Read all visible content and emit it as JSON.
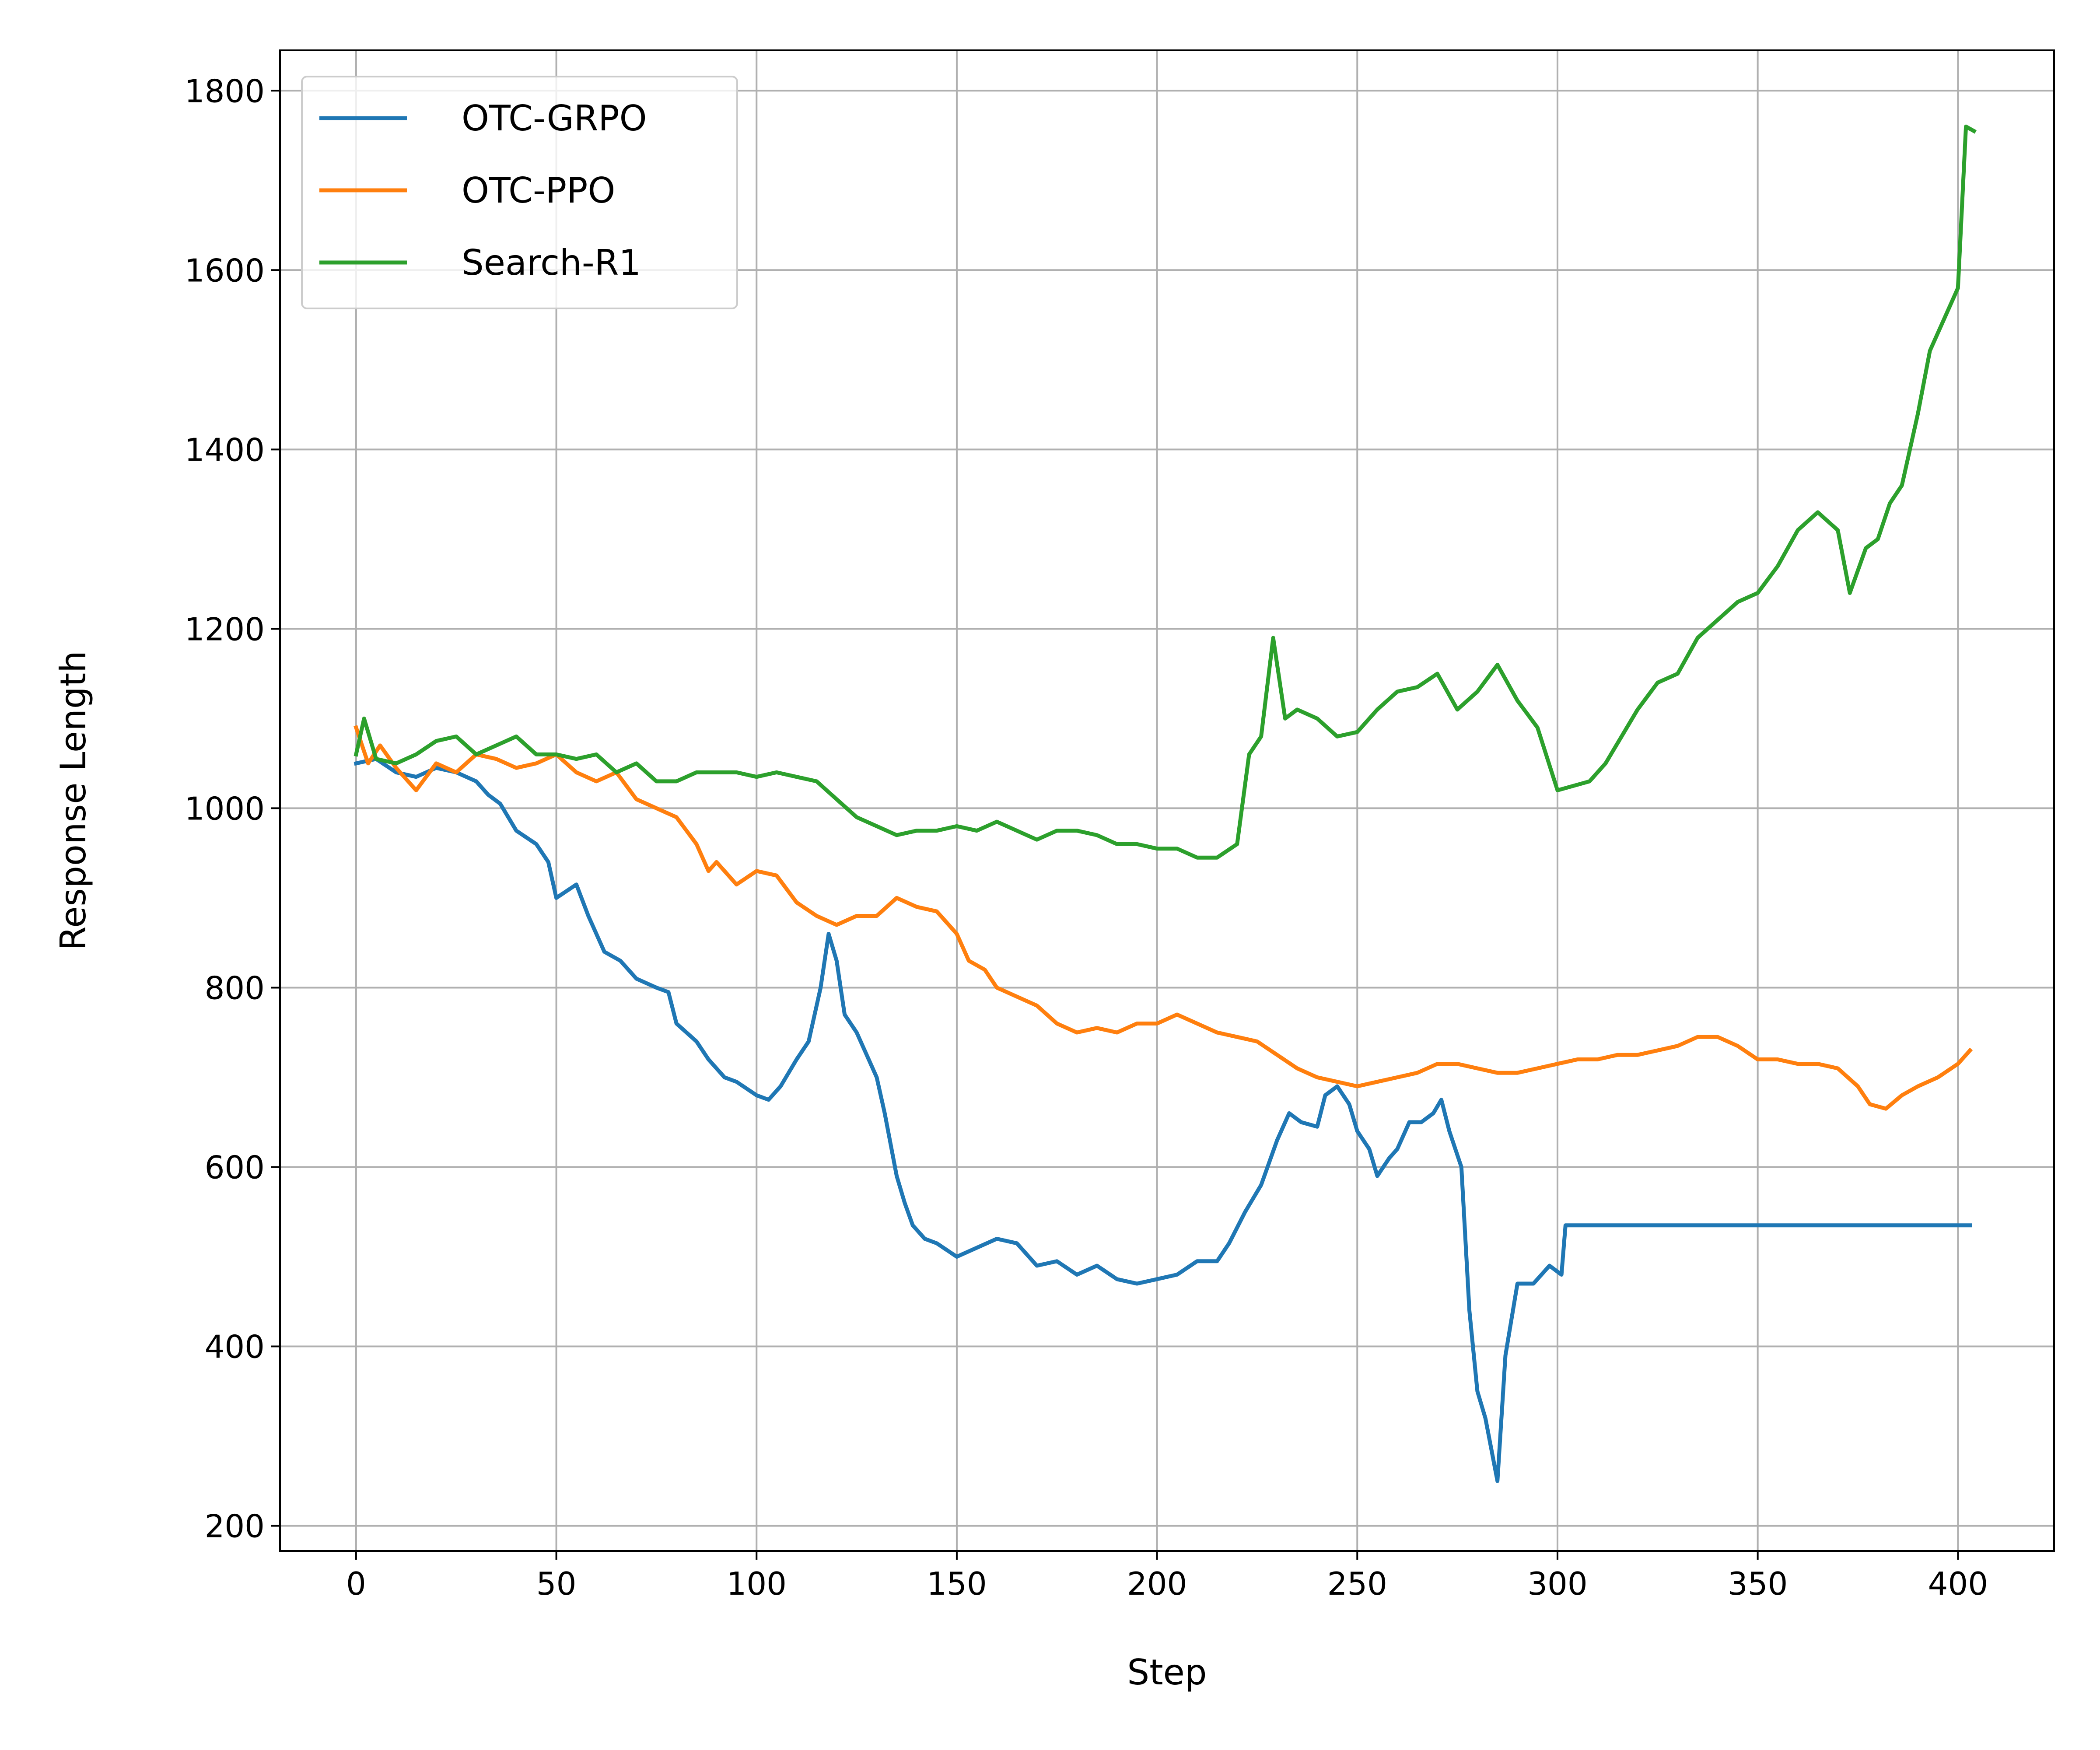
{
  "chart_data": {
    "type": "line",
    "xlabel": "Step",
    "ylabel": "Response Length",
    "xlim": [
      -19,
      424
    ],
    "ylim": [
      172,
      1845
    ],
    "xticks": [
      0,
      50,
      100,
      150,
      200,
      250,
      300,
      350,
      400
    ],
    "yticks": [
      200,
      400,
      600,
      800,
      1000,
      1200,
      1400,
      1600,
      1800
    ],
    "grid": true,
    "legend_position": "top-left",
    "series": [
      {
        "name": "OTC-GRPO",
        "color": "#1f77b4",
        "points": [
          [
            0,
            1050
          ],
          [
            5,
            1055
          ],
          [
            10,
            1040
          ],
          [
            15,
            1035
          ],
          [
            20,
            1045
          ],
          [
            25,
            1040
          ],
          [
            30,
            1030
          ],
          [
            33,
            1015
          ],
          [
            36,
            1005
          ],
          [
            40,
            975
          ],
          [
            45,
            960
          ],
          [
            48,
            940
          ],
          [
            50,
            900
          ],
          [
            55,
            915
          ],
          [
            58,
            880
          ],
          [
            62,
            840
          ],
          [
            66,
            830
          ],
          [
            70,
            810
          ],
          [
            75,
            800
          ],
          [
            78,
            795
          ],
          [
            80,
            760
          ],
          [
            85,
            740
          ],
          [
            88,
            720
          ],
          [
            92,
            700
          ],
          [
            95,
            695
          ],
          [
            100,
            680
          ],
          [
            103,
            675
          ],
          [
            106,
            690
          ],
          [
            110,
            720
          ],
          [
            113,
            740
          ],
          [
            116,
            800
          ],
          [
            118,
            860
          ],
          [
            120,
            830
          ],
          [
            122,
            770
          ],
          [
            125,
            750
          ],
          [
            128,
            720
          ],
          [
            130,
            700
          ],
          [
            132,
            660
          ],
          [
            135,
            590
          ],
          [
            137,
            560
          ],
          [
            139,
            535
          ],
          [
            142,
            520
          ],
          [
            145,
            515
          ],
          [
            150,
            500
          ],
          [
            155,
            510
          ],
          [
            160,
            520
          ],
          [
            165,
            515
          ],
          [
            170,
            490
          ],
          [
            175,
            495
          ],
          [
            180,
            480
          ],
          [
            185,
            490
          ],
          [
            190,
            475
          ],
          [
            195,
            470
          ],
          [
            200,
            475
          ],
          [
            205,
            480
          ],
          [
            210,
            495
          ],
          [
            215,
            495
          ],
          [
            218,
            515
          ],
          [
            222,
            550
          ],
          [
            226,
            580
          ],
          [
            230,
            630
          ],
          [
            233,
            660
          ],
          [
            236,
            650
          ],
          [
            240,
            645
          ],
          [
            242,
            680
          ],
          [
            245,
            690
          ],
          [
            248,
            670
          ],
          [
            250,
            640
          ],
          [
            253,
            620
          ],
          [
            255,
            590
          ],
          [
            258,
            610
          ],
          [
            260,
            620
          ],
          [
            263,
            650
          ],
          [
            266,
            650
          ],
          [
            269,
            660
          ],
          [
            271,
            675
          ],
          [
            273,
            640
          ],
          [
            276,
            600
          ],
          [
            278,
            440
          ],
          [
            280,
            350
          ],
          [
            282,
            320
          ],
          [
            285,
            250
          ],
          [
            287,
            390
          ],
          [
            290,
            470
          ],
          [
            294,
            470
          ],
          [
            298,
            490
          ],
          [
            301,
            480
          ],
          [
            302,
            535
          ],
          [
            310,
            535
          ],
          [
            320,
            535
          ],
          [
            330,
            535
          ],
          [
            340,
            535
          ],
          [
            350,
            535
          ],
          [
            360,
            535
          ],
          [
            370,
            535
          ],
          [
            380,
            535
          ],
          [
            390,
            535
          ],
          [
            400,
            535
          ],
          [
            403,
            535
          ]
        ]
      },
      {
        "name": "OTC-PPO",
        "color": "#ff7f0e",
        "points": [
          [
            0,
            1090
          ],
          [
            3,
            1050
          ],
          [
            6,
            1070
          ],
          [
            10,
            1045
          ],
          [
            15,
            1020
          ],
          [
            20,
            1050
          ],
          [
            25,
            1040
          ],
          [
            30,
            1060
          ],
          [
            35,
            1055
          ],
          [
            40,
            1045
          ],
          [
            45,
            1050
          ],
          [
            50,
            1060
          ],
          [
            55,
            1040
          ],
          [
            60,
            1030
          ],
          [
            65,
            1040
          ],
          [
            70,
            1010
          ],
          [
            75,
            1000
          ],
          [
            80,
            990
          ],
          [
            85,
            960
          ],
          [
            88,
            930
          ],
          [
            90,
            940
          ],
          [
            95,
            915
          ],
          [
            100,
            930
          ],
          [
            105,
            925
          ],
          [
            110,
            895
          ],
          [
            115,
            880
          ],
          [
            120,
            870
          ],
          [
            125,
            880
          ],
          [
            130,
            880
          ],
          [
            135,
            900
          ],
          [
            140,
            890
          ],
          [
            145,
            885
          ],
          [
            150,
            860
          ],
          [
            153,
            830
          ],
          [
            157,
            820
          ],
          [
            160,
            800
          ],
          [
            165,
            790
          ],
          [
            170,
            780
          ],
          [
            175,
            760
          ],
          [
            180,
            750
          ],
          [
            185,
            755
          ],
          [
            190,
            750
          ],
          [
            195,
            760
          ],
          [
            200,
            760
          ],
          [
            205,
            770
          ],
          [
            210,
            760
          ],
          [
            215,
            750
          ],
          [
            220,
            745
          ],
          [
            225,
            740
          ],
          [
            230,
            725
          ],
          [
            235,
            710
          ],
          [
            240,
            700
          ],
          [
            245,
            695
          ],
          [
            250,
            690
          ],
          [
            255,
            695
          ],
          [
            260,
            700
          ],
          [
            265,
            705
          ],
          [
            270,
            715
          ],
          [
            275,
            715
          ],
          [
            280,
            710
          ],
          [
            285,
            705
          ],
          [
            290,
            705
          ],
          [
            295,
            710
          ],
          [
            300,
            715
          ],
          [
            305,
            720
          ],
          [
            310,
            720
          ],
          [
            315,
            725
          ],
          [
            320,
            725
          ],
          [
            325,
            730
          ],
          [
            330,
            735
          ],
          [
            335,
            745
          ],
          [
            340,
            745
          ],
          [
            345,
            735
          ],
          [
            350,
            720
          ],
          [
            355,
            720
          ],
          [
            360,
            715
          ],
          [
            365,
            715
          ],
          [
            370,
            710
          ],
          [
            375,
            690
          ],
          [
            378,
            670
          ],
          [
            382,
            665
          ],
          [
            386,
            680
          ],
          [
            390,
            690
          ],
          [
            395,
            700
          ],
          [
            400,
            715
          ],
          [
            403,
            730
          ]
        ]
      },
      {
        "name": "Search-R1",
        "color": "#2ca02c",
        "points": [
          [
            0,
            1060
          ],
          [
            2,
            1100
          ],
          [
            5,
            1055
          ],
          [
            10,
            1050
          ],
          [
            15,
            1060
          ],
          [
            20,
            1075
          ],
          [
            25,
            1080
          ],
          [
            30,
            1060
          ],
          [
            35,
            1070
          ],
          [
            40,
            1080
          ],
          [
            45,
            1060
          ],
          [
            50,
            1060
          ],
          [
            55,
            1055
          ],
          [
            60,
            1060
          ],
          [
            65,
            1040
          ],
          [
            70,
            1050
          ],
          [
            75,
            1030
          ],
          [
            80,
            1030
          ],
          [
            85,
            1040
          ],
          [
            90,
            1040
          ],
          [
            95,
            1040
          ],
          [
            100,
            1035
          ],
          [
            105,
            1040
          ],
          [
            110,
            1035
          ],
          [
            115,
            1030
          ],
          [
            120,
            1010
          ],
          [
            125,
            990
          ],
          [
            130,
            980
          ],
          [
            135,
            970
          ],
          [
            140,
            975
          ],
          [
            145,
            975
          ],
          [
            150,
            980
          ],
          [
            155,
            975
          ],
          [
            160,
            985
          ],
          [
            165,
            975
          ],
          [
            170,
            965
          ],
          [
            175,
            975
          ],
          [
            180,
            975
          ],
          [
            185,
            970
          ],
          [
            190,
            960
          ],
          [
            195,
            960
          ],
          [
            200,
            955
          ],
          [
            205,
            955
          ],
          [
            210,
            945
          ],
          [
            215,
            945
          ],
          [
            220,
            960
          ],
          [
            223,
            1060
          ],
          [
            226,
            1080
          ],
          [
            229,
            1190
          ],
          [
            232,
            1100
          ],
          [
            235,
            1110
          ],
          [
            240,
            1100
          ],
          [
            245,
            1080
          ],
          [
            250,
            1085
          ],
          [
            255,
            1110
          ],
          [
            260,
            1130
          ],
          [
            265,
            1135
          ],
          [
            270,
            1150
          ],
          [
            275,
            1110
          ],
          [
            280,
            1130
          ],
          [
            285,
            1160
          ],
          [
            290,
            1120
          ],
          [
            295,
            1090
          ],
          [
            300,
            1020
          ],
          [
            304,
            1025
          ],
          [
            308,
            1030
          ],
          [
            312,
            1050
          ],
          [
            316,
            1080
          ],
          [
            320,
            1110
          ],
          [
            325,
            1140
          ],
          [
            330,
            1150
          ],
          [
            335,
            1190
          ],
          [
            340,
            1210
          ],
          [
            345,
            1230
          ],
          [
            350,
            1240
          ],
          [
            355,
            1270
          ],
          [
            360,
            1310
          ],
          [
            365,
            1330
          ],
          [
            370,
            1310
          ],
          [
            373,
            1240
          ],
          [
            377,
            1290
          ],
          [
            380,
            1300
          ],
          [
            383,
            1340
          ],
          [
            386,
            1360
          ],
          [
            390,
            1440
          ],
          [
            393,
            1510
          ],
          [
            396,
            1540
          ],
          [
            400,
            1580
          ],
          [
            402,
            1760
          ],
          [
            404,
            1755
          ]
        ]
      }
    ]
  }
}
